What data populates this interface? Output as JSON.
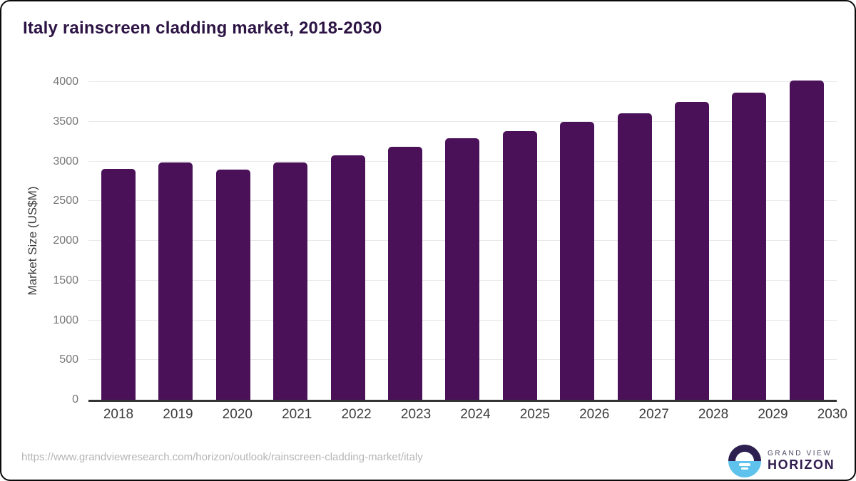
{
  "title": "Italy rainscreen cladding market, 2018-2030",
  "chart_data": {
    "type": "bar",
    "title": "Italy rainscreen cladding market, 2018-2030",
    "categories": [
      "2018",
      "2019",
      "2020",
      "2021",
      "2022",
      "2023",
      "2024",
      "2025",
      "2026",
      "2027",
      "2028",
      "2029",
      "2030"
    ],
    "values": [
      2910,
      2990,
      2900,
      2990,
      3080,
      3180,
      3290,
      3385,
      3500,
      3610,
      3745,
      3870,
      4015
    ],
    "xlabel": "",
    "ylabel": "Market Size (US$M)",
    "ylim": [
      0,
      4000
    ],
    "yticks": [
      0,
      500,
      1000,
      1500,
      2000,
      2500,
      3000,
      3500,
      4000
    ],
    "grid": true,
    "legend": "none",
    "bar_color": "#4a1159"
  },
  "footer": {
    "source_url": "https://www.grandviewresearch.com/horizon/outlook/rainscreen-cladding-market/italy",
    "logo": {
      "line1": "GRAND VIEW",
      "line2": "HORIZON"
    }
  },
  "colors": {
    "bar": "#4a1159",
    "title_text": "#2c1343",
    "axis_label": "#3d3d3d",
    "y_tick_text": "#757575",
    "gridline": "#e9e9e9",
    "baseline": "#343434",
    "url_text": "#b5b5b5",
    "logo_dark": "#2d2050",
    "logo_blue": "#5ec2ec",
    "border": "#0a0a0a"
  }
}
